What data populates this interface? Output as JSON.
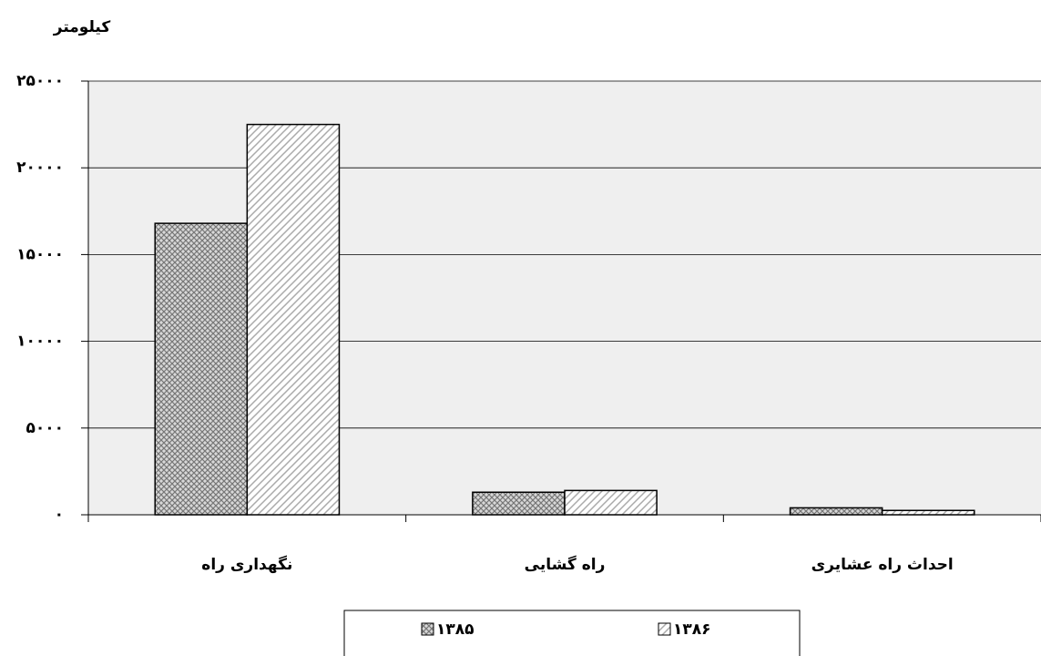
{
  "chart_data": {
    "type": "bar",
    "ylabel": "کیلومتر",
    "categories": [
      "نگهداری راه",
      "راه گشایی",
      "احداث راه عشایری"
    ],
    "series": [
      {
        "name": "۱۳۸۵",
        "color": "#8a8a8a",
        "values": [
          16800,
          1300,
          400
        ]
      },
      {
        "name": "۱۳۸۶",
        "color": "#9a9a9a",
        "values": [
          22500,
          1400,
          250
        ]
      }
    ],
    "ylim": [
      0,
      25000
    ],
    "yticks": [
      {
        "value": 0,
        "label": "۰"
      },
      {
        "value": 5000,
        "label": "۵۰۰۰"
      },
      {
        "value": 10000,
        "label": "۱۰۰۰۰"
      },
      {
        "value": 15000,
        "label": "۱۵۰۰۰"
      },
      {
        "value": 20000,
        "label": "۲۰۰۰۰"
      },
      {
        "value": 25000,
        "label": "۲۵۰۰۰"
      }
    ],
    "grid": true,
    "legend": "bottom"
  }
}
